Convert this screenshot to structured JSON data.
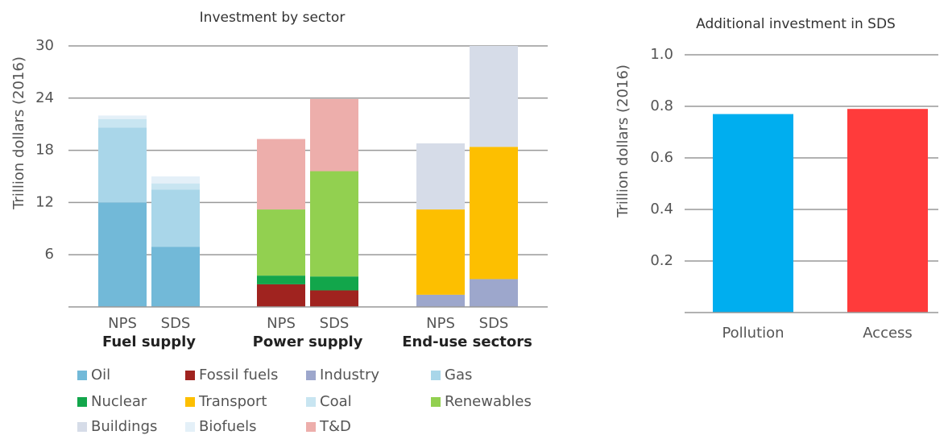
{
  "chart_data": [
    {
      "type": "bar",
      "stacked": true,
      "title": "Investment by sector",
      "y_label": "Trillion dollars (2016)",
      "categories": [
        "NPS",
        "SDS",
        "NPS",
        "SDS",
        "NPS",
        "SDS"
      ],
      "groups": [
        "Fuel  supply",
        "Power supply",
        "End-use sectors"
      ],
      "ylim": [
        0,
        30
      ],
      "yticks": [
        6,
        12,
        18,
        24,
        30
      ],
      "grid": true,
      "legend": "bottom",
      "series": [
        {
          "name": "Oil",
          "color": "#72b9d8",
          "values": [
            12.0,
            6.9,
            null,
            null,
            null,
            null
          ]
        },
        {
          "name": "Fossil fuels",
          "color": "#a0231f",
          "values": [
            null,
            null,
            2.6,
            1.9,
            null,
            null
          ]
        },
        {
          "name": "Industry",
          "color": "#9da7cc",
          "values": [
            null,
            null,
            null,
            null,
            1.4,
            3.2
          ]
        },
        {
          "name": "Gas",
          "color": "#a9d6e9",
          "values": [
            8.6,
            6.6,
            null,
            null,
            null,
            null
          ]
        },
        {
          "name": "Nuclear",
          "color": "#12a64b",
          "values": [
            null,
            null,
            1.0,
            1.6,
            null,
            null
          ]
        },
        {
          "name": "Transport",
          "color": "#fdbf00",
          "values": [
            null,
            null,
            null,
            null,
            9.8,
            15.2
          ]
        },
        {
          "name": "Coal",
          "color": "#c8e5f1",
          "values": [
            1.0,
            0.7,
            null,
            null,
            null,
            null
          ]
        },
        {
          "name": "Renewables",
          "color": "#92d050",
          "values": [
            null,
            null,
            7.6,
            12.1,
            null,
            null
          ]
        },
        {
          "name": "Buildings",
          "color": "#d6dce8",
          "values": [
            null,
            null,
            null,
            null,
            7.6,
            11.6
          ]
        },
        {
          "name": "Biofuels",
          "color": "#e4f0f8",
          "values": [
            0.4,
            0.8,
            null,
            null,
            null,
            null
          ]
        },
        {
          "name": "T&D",
          "color": "#edaeab",
          "values": [
            null,
            null,
            8.1,
            8.3,
            null,
            null
          ]
        }
      ]
    },
    {
      "type": "bar",
      "title": "Additional investment in SDS",
      "y_label": "Trillion dollars (2016)",
      "categories": [
        "Pollution",
        "Access"
      ],
      "values": [
        0.77,
        0.79
      ],
      "colors": [
        "#00aeef",
        "#ff3b3b"
      ],
      "ylim": [
        0,
        1
      ],
      "yticks": [
        0.2,
        0.4,
        0.6,
        0.8,
        {
          "value": 1,
          "label": "1.0"
        }
      ],
      "grid": true
    }
  ]
}
